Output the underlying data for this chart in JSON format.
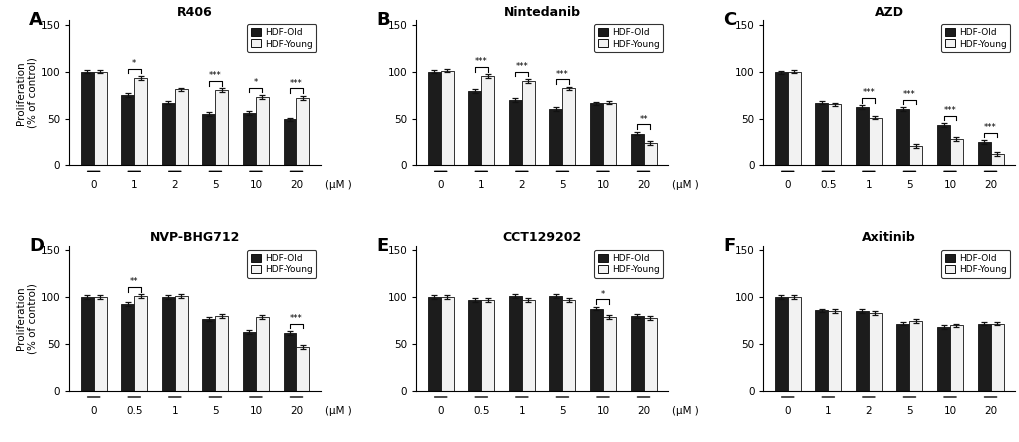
{
  "panels": [
    {
      "label": "A",
      "title": "R406",
      "xtick_labels": [
        "0",
        "1",
        "2",
        "5",
        "10",
        "20"
      ],
      "old_values": [
        100,
        75,
        67,
        55,
        56,
        49
      ],
      "young_values": [
        100,
        93,
        81,
        80,
        73,
        72
      ],
      "old_errors": [
        2,
        2,
        2,
        2,
        2,
        2
      ],
      "young_errors": [
        2,
        2,
        2,
        2,
        2,
        2
      ],
      "sig_pairs": [
        [
          1,
          "*"
        ],
        [
          3,
          "***"
        ],
        [
          4,
          "*"
        ],
        [
          5,
          "***"
        ]
      ],
      "ylim": [
        0,
        155
      ],
      "yticks": [
        0,
        50,
        100,
        150
      ]
    },
    {
      "label": "B",
      "title": "Nintedanib",
      "xtick_labels": [
        "0",
        "1",
        "2",
        "5",
        "10",
        "20"
      ],
      "old_values": [
        100,
        79,
        70,
        60,
        66,
        34
      ],
      "young_values": [
        101,
        95,
        90,
        82,
        67,
        24
      ],
      "old_errors": [
        2,
        2,
        2,
        2,
        2,
        2
      ],
      "young_errors": [
        2,
        2,
        2,
        2,
        2,
        2
      ],
      "sig_pairs": [
        [
          1,
          "***"
        ],
        [
          2,
          "***"
        ],
        [
          3,
          "***"
        ],
        [
          5,
          "**"
        ]
      ],
      "ylim": [
        0,
        155
      ],
      "yticks": [
        0,
        50,
        100,
        150
      ]
    },
    {
      "label": "C",
      "title": "AZD",
      "xtick_labels": [
        "0",
        "0.5",
        "1",
        "5",
        "10",
        "20"
      ],
      "old_values": [
        99,
        67,
        62,
        60,
        43,
        25
      ],
      "young_values": [
        100,
        65,
        51,
        21,
        28,
        12
      ],
      "old_errors": [
        2,
        2,
        2,
        2,
        2,
        2
      ],
      "young_errors": [
        2,
        2,
        2,
        2,
        2,
        2
      ],
      "sig_pairs": [
        [
          2,
          "***"
        ],
        [
          3,
          "***"
        ],
        [
          4,
          "***"
        ],
        [
          5,
          "***"
        ]
      ],
      "ylim": [
        0,
        155
      ],
      "yticks": [
        0,
        50,
        100,
        150
      ]
    },
    {
      "label": "D",
      "title": "NVP-BHG712",
      "xtick_labels": [
        "0",
        "0.5",
        "1",
        "5",
        "10",
        "20"
      ],
      "old_values": [
        100,
        93,
        100,
        77,
        63,
        62
      ],
      "young_values": [
        100,
        101,
        101,
        80,
        79,
        47
      ],
      "old_errors": [
        2,
        2,
        2,
        2,
        2,
        2
      ],
      "young_errors": [
        2,
        2,
        2,
        2,
        2,
        2
      ],
      "sig_pairs": [
        [
          1,
          "**"
        ],
        [
          5,
          "***"
        ]
      ],
      "ylim": [
        0,
        155
      ],
      "yticks": [
        0,
        50,
        100,
        150
      ]
    },
    {
      "label": "E",
      "title": "CCT129202",
      "xtick_labels": [
        "0",
        "0.5",
        "1",
        "5",
        "10",
        "20"
      ],
      "old_values": [
        100,
        97,
        101,
        101,
        88,
        80
      ],
      "young_values": [
        100,
        97,
        97,
        97,
        79,
        78
      ],
      "old_errors": [
        2,
        2,
        2,
        2,
        2,
        2
      ],
      "young_errors": [
        2,
        2,
        2,
        2,
        2,
        2
      ],
      "sig_pairs": [
        [
          4,
          "*"
        ]
      ],
      "ylim": [
        0,
        155
      ],
      "yticks": [
        0,
        50,
        100,
        150
      ]
    },
    {
      "label": "F",
      "title": "Axitinib",
      "xtick_labels": [
        "0",
        "1",
        "2",
        "5",
        "10",
        "20"
      ],
      "old_values": [
        100,
        86,
        85,
        72,
        68,
        72
      ],
      "young_values": [
        100,
        85,
        83,
        75,
        70,
        72
      ],
      "old_errors": [
        2,
        2,
        2,
        2,
        2,
        2
      ],
      "young_errors": [
        2,
        2,
        2,
        2,
        2,
        2
      ],
      "sig_pairs": [],
      "ylim": [
        0,
        155
      ],
      "yticks": [
        0,
        50,
        100,
        150
      ]
    }
  ],
  "bar_width": 0.32,
  "old_color": "#1c1c1c",
  "young_color": "#f2f2f2",
  "bar_edge_color": "#111111",
  "error_color": "#111111",
  "ylabel": "Proliferation\n(% of control)",
  "xlabel_unit": "(μM )",
  "legend_old": "HDF-Old",
  "legend_young": "HDF-Young",
  "figure_bg": "#ffffff"
}
